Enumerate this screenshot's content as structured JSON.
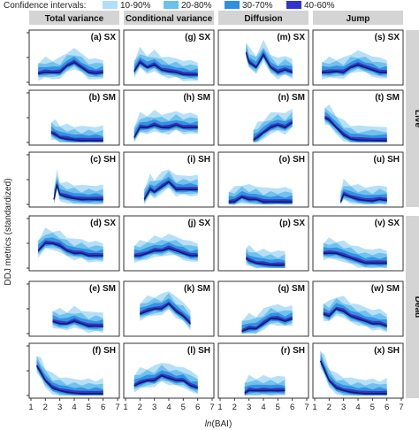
{
  "legend": {
    "title": "Confidence intervals:",
    "entries": [
      {
        "label": "10-90%",
        "color": "#b3def5"
      },
      {
        "label": "20-80%",
        "color": "#6cc0ec"
      },
      {
        "label": "30-70%",
        "color": "#2f8fe0"
      },
      {
        "label": "40-60%",
        "color": "#2f35c8"
      }
    ],
    "median_color": "#1a1a6e"
  },
  "columns": [
    "Total variance",
    "Conditional variance",
    "Diffusion",
    "Jump"
  ],
  "row_groups": [
    {
      "label": "Live",
      "rows": [
        0,
        1,
        2
      ]
    },
    {
      "label": "Dead",
      "rows": [
        3,
        4,
        5
      ]
    }
  ],
  "axes": {
    "ylabel": "DDJ metrics (standardized)",
    "xlabel_italic": "ln",
    "xlabel_rest": "(BAI)",
    "xticks": [
      "1",
      "2",
      "3",
      "4",
      "5",
      "6",
      "7"
    ],
    "xlim": [
      1,
      7
    ],
    "ylim": [
      0,
      1
    ]
  },
  "chart_data": {
    "type": "area",
    "description_of_panels": "6 rows x 4 columns of fan charts; each shows median line and nested confidence bands vs ln(BAI)",
    "panels": [
      {
        "id": "a",
        "label": "(a) SX",
        "row": 0,
        "col": 0,
        "x": [
          1.5,
          2,
          2.5,
          3,
          3.5,
          4,
          4.5,
          5,
          5.5,
          6
        ],
        "median": [
          0.18,
          0.2,
          0.2,
          0.2,
          0.33,
          0.4,
          0.3,
          0.2,
          0.18,
          0.2
        ]
      },
      {
        "id": "g",
        "label": "(g) SX",
        "row": 0,
        "col": 1,
        "x": [
          1.6,
          2,
          2.5,
          3,
          3.5,
          4,
          4.5,
          5,
          5.5,
          6
        ],
        "median": [
          0.22,
          0.4,
          0.3,
          0.35,
          0.25,
          0.22,
          0.2,
          0.16,
          0.15,
          0.15
        ]
      },
      {
        "id": "m",
        "label": "(m) SX",
        "row": 0,
        "col": 2,
        "x": [
          2.8,
          3,
          3.5,
          4,
          4.5,
          5,
          5.5,
          6
        ],
        "median": [
          0.6,
          0.4,
          0.3,
          0.55,
          0.3,
          0.2,
          0.25,
          0.2
        ]
      },
      {
        "id": "s",
        "label": "(s) SX",
        "row": 0,
        "col": 3,
        "x": [
          1.5,
          2,
          2.5,
          3,
          3.5,
          4,
          4.5,
          5,
          5.5,
          6
        ],
        "median": [
          0.2,
          0.2,
          0.22,
          0.2,
          0.3,
          0.35,
          0.3,
          0.25,
          0.2,
          0.2
        ]
      },
      {
        "id": "b",
        "label": "(b) SM",
        "row": 1,
        "col": 0,
        "x": [
          2.4,
          2.7,
          3,
          3.5,
          4,
          4.5,
          5,
          5.5,
          6
        ],
        "median": [
          0.2,
          0.15,
          0.1,
          0.07,
          0.05,
          0.04,
          0.04,
          0.04,
          0.04
        ]
      },
      {
        "id": "h",
        "label": "(h) SM",
        "row": 1,
        "col": 1,
        "x": [
          1.6,
          2,
          2.5,
          3,
          3.5,
          4,
          4.5,
          5,
          5.5,
          6
        ],
        "median": [
          0.1,
          0.3,
          0.3,
          0.35,
          0.3,
          0.3,
          0.35,
          0.3,
          0.3,
          0.3
        ]
      },
      {
        "id": "n",
        "label": "(n) SM",
        "row": 1,
        "col": 2,
        "x": [
          3.3,
          3.6,
          4,
          4.5,
          5,
          5.5,
          6
        ],
        "median": [
          0.05,
          0.1,
          0.2,
          0.3,
          0.35,
          0.3,
          0.4
        ]
      },
      {
        "id": "t",
        "label": "(t) SM",
        "row": 1,
        "col": 3,
        "x": [
          1.7,
          2,
          2.5,
          3,
          3.5,
          4,
          5,
          6
        ],
        "median": [
          0.5,
          0.45,
          0.3,
          0.15,
          0.07,
          0.05,
          0.04,
          0.04
        ]
      },
      {
        "id": "c",
        "label": "(c) SH",
        "row": 2,
        "col": 0,
        "x": [
          2.6,
          2.8,
          3,
          3.5,
          4,
          4.5,
          5,
          5.5,
          6
        ],
        "median": [
          0.1,
          0.4,
          0.2,
          0.15,
          0.12,
          0.1,
          0.1,
          0.1,
          0.1
        ]
      },
      {
        "id": "i",
        "label": "(i) SH",
        "row": 2,
        "col": 1,
        "x": [
          2.3,
          2.7,
          3,
          3.5,
          4,
          4.5,
          5,
          5.5,
          6
        ],
        "median": [
          0.1,
          0.3,
          0.25,
          0.35,
          0.45,
          0.3,
          0.3,
          0.3,
          0.3
        ]
      },
      {
        "id": "o",
        "label": "(o) SH",
        "row": 2,
        "col": 2,
        "x": [
          1.6,
          2,
          2.5,
          3,
          3.5,
          4,
          4.5,
          5,
          5.5,
          6
        ],
        "median": [
          0.05,
          0.05,
          0.15,
          0.1,
          0.1,
          0.05,
          0.05,
          0.05,
          0.05,
          0.05
        ]
      },
      {
        "id": "u",
        "label": "(u) SH",
        "row": 2,
        "col": 3,
        "x": [
          2.8,
          3,
          3.5,
          4,
          4.5,
          5,
          5.5,
          6
        ],
        "median": [
          0.05,
          0.2,
          0.15,
          0.1,
          0.08,
          0.07,
          0.1,
          0.08
        ]
      },
      {
        "id": "d",
        "label": "(d) SX",
        "row": 3,
        "col": 0,
        "x": [
          1.5,
          2,
          2.5,
          3,
          3.5,
          4,
          4.5,
          5,
          5.5,
          6
        ],
        "median": [
          0.35,
          0.5,
          0.5,
          0.45,
          0.35,
          0.3,
          0.3,
          0.25,
          0.25,
          0.25
        ]
      },
      {
        "id": "j",
        "label": "(j) SX",
        "row": 3,
        "col": 1,
        "x": [
          1.6,
          2,
          2.5,
          3,
          3.5,
          4,
          4.5,
          5,
          5.5,
          6
        ],
        "median": [
          0.25,
          0.25,
          0.3,
          0.35,
          0.35,
          0.4,
          0.35,
          0.3,
          0.25,
          0.25
        ]
      },
      {
        "id": "p",
        "label": "(p) SX",
        "row": 3,
        "col": 2,
        "x": [
          2.8,
          3,
          3.5,
          4,
          4.5,
          5,
          5.5
        ],
        "median": [
          0.2,
          0.15,
          0.1,
          0.08,
          0.06,
          0.06,
          0.06
        ]
      },
      {
        "id": "v",
        "label": "(v) SX",
        "row": 3,
        "col": 3,
        "x": [
          1.6,
          2,
          2.5,
          3,
          3.5,
          4,
          4.5,
          5,
          5.5,
          6
        ],
        "median": [
          0.3,
          0.3,
          0.3,
          0.25,
          0.2,
          0.15,
          0.1,
          0.1,
          0.1,
          0.1
        ]
      },
      {
        "id": "e",
        "label": "(e) SM",
        "row": 4,
        "col": 0,
        "x": [
          2.5,
          3,
          3.5,
          4,
          4.5,
          5,
          5.5,
          6
        ],
        "median": [
          0.25,
          0.2,
          0.2,
          0.25,
          0.2,
          0.15,
          0.15,
          0.15
        ]
      },
      {
        "id": "k",
        "label": "(k) SM",
        "row": 4,
        "col": 1,
        "x": [
          2,
          2.5,
          3,
          3.5,
          4,
          4.5,
          5,
          5.5
        ],
        "median": [
          0.4,
          0.45,
          0.5,
          0.5,
          0.6,
          0.45,
          0.35,
          0.2
        ]
      },
      {
        "id": "q",
        "label": "(q) SM",
        "row": 4,
        "col": 2,
        "x": [
          2.5,
          3,
          3.5,
          4,
          4.5,
          5,
          5.5,
          6
        ],
        "median": [
          0.05,
          0.1,
          0.1,
          0.2,
          0.3,
          0.3,
          0.25,
          0.3
        ]
      },
      {
        "id": "w",
        "label": "(w) SM",
        "row": 4,
        "col": 3,
        "x": [
          1.6,
          2,
          2.5,
          3,
          3.5,
          4,
          4.5,
          5,
          5.5,
          6
        ],
        "median": [
          0.4,
          0.35,
          0.5,
          0.45,
          0.35,
          0.3,
          0.25,
          0.2,
          0.2,
          0.15
        ]
      },
      {
        "id": "f",
        "label": "(f) SH",
        "row": 5,
        "col": 0,
        "x": [
          1.4,
          1.7,
          2,
          2.5,
          3,
          3.5,
          4,
          4.5,
          5,
          5.5,
          6
        ],
        "median": [
          0.6,
          0.45,
          0.3,
          0.15,
          0.1,
          0.07,
          0.05,
          0.04,
          0.04,
          0.04,
          0.04
        ]
      },
      {
        "id": "l",
        "label": "(l) SH",
        "row": 5,
        "col": 1,
        "x": [
          1.6,
          2,
          2.5,
          3,
          3.5,
          4,
          4.5,
          5,
          5.5,
          6
        ],
        "median": [
          0.2,
          0.25,
          0.3,
          0.3,
          0.4,
          0.35,
          0.3,
          0.3,
          0.2,
          0.15
        ]
      },
      {
        "id": "r",
        "label": "(r) SH",
        "row": 5,
        "col": 2,
        "x": [
          2.7,
          3,
          3.5,
          4,
          4.5,
          5,
          5.5
        ],
        "median": [
          0.05,
          0.1,
          0.1,
          0.1,
          0.1,
          0.1,
          0.1
        ]
      },
      {
        "id": "x",
        "label": "(x) SH",
        "row": 5,
        "col": 3,
        "x": [
          1.4,
          1.7,
          2,
          2.5,
          3,
          3.5,
          4,
          4.5,
          5,
          5.5,
          6
        ],
        "median": [
          0.7,
          0.5,
          0.3,
          0.15,
          0.1,
          0.07,
          0.05,
          0.04,
          0.04,
          0.04,
          0.04
        ]
      }
    ]
  }
}
